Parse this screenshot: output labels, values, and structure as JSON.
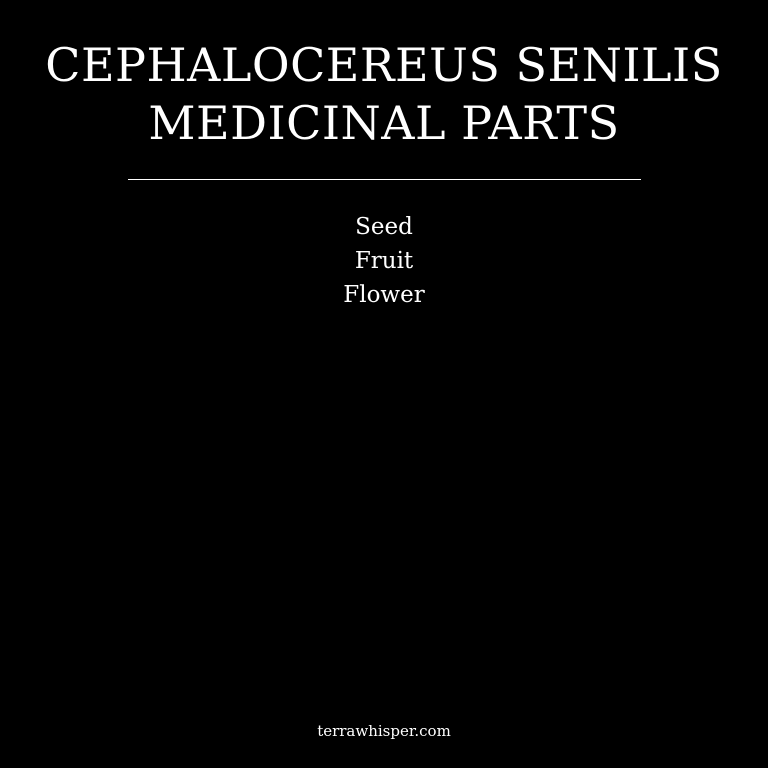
{
  "title": {
    "line1": "CEPHALOCEREUS SENILIS",
    "line2": "MEDICINAL PARTS"
  },
  "parts": [
    "Seed",
    "Fruit",
    "Flower"
  ],
  "footer": {
    "site": "terrawhisper.com"
  },
  "colors": {
    "background": "#000000",
    "text": "#ffffff"
  }
}
